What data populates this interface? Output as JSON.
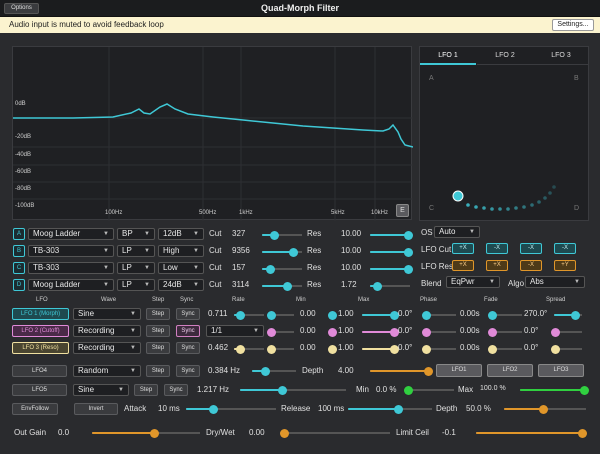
{
  "window": {
    "options_label": "Options",
    "title": "Quad-Morph Filter"
  },
  "notice": {
    "message": "Audio input is muted to avoid feedback loop",
    "settings_label": "Settings..."
  },
  "eq": {
    "db_labels": [
      "0dB",
      "-20dB",
      "-40dB",
      "-60dB",
      "-80dB",
      "-100dB"
    ],
    "freq_labels": [
      "100Hz",
      "500Hz",
      "1kHz",
      "5kHz",
      "10kHz"
    ],
    "e_button": "E",
    "curve_color": "#3fc8d6"
  },
  "lfo_panel": {
    "tabs": [
      "LFO 1",
      "LFO 2",
      "LFO 3"
    ],
    "corners": [
      "A",
      "B",
      "C",
      "D"
    ]
  },
  "filters": [
    {
      "letter": "A",
      "model": "Moog Ladder",
      "type": "BP",
      "slope": "12dB",
      "cut_label": "Cut",
      "cut": "327",
      "cut_pos": 0.3,
      "res_label": "Res",
      "res": "10.00",
      "res_pos": 0.95
    },
    {
      "letter": "B",
      "model": "TB-303",
      "type": "LP",
      "slope": "High",
      "cut_label": "Cut",
      "cut": "9356",
      "cut_pos": 0.78,
      "res_label": "Res",
      "res": "10.00",
      "res_pos": 0.95
    },
    {
      "letter": "C",
      "model": "TB-303",
      "type": "LP",
      "slope": "Low",
      "cut_label": "Cut",
      "cut": "157",
      "cut_pos": 0.2,
      "res_label": "Res",
      "res": "10.00",
      "res_pos": 0.95
    },
    {
      "letter": "D",
      "model": "Moog Ladder",
      "type": "LP",
      "slope": "24dB",
      "cut_label": "Cut",
      "cut": "3114",
      "cut_pos": 0.62,
      "res_label": "Res",
      "res": "1.72",
      "res_pos": 0.18
    }
  ],
  "routing": {
    "os_label": "OS",
    "os_value": "Auto",
    "lfo_cut_label": "LFO Cut",
    "lfo_cut_buttons": [
      "+X",
      "-X",
      "-X",
      "-X"
    ],
    "lfo_res_label": "LFO Res",
    "lfo_res_buttons": [
      "+X",
      "+X",
      "-X",
      "+Y"
    ],
    "blend_label": "Blend",
    "blend_value": "EqPwr",
    "algo_label": "Algo",
    "algo_value": "Abs"
  },
  "lfo_header": [
    "LFO",
    "Wave",
    "Step",
    "Sync",
    "Rate",
    "Min",
    "Max",
    "Phase",
    "Fade",
    "Spread"
  ],
  "lfos": [
    {
      "name": "LFO 1 (Morph)",
      "wave": "Sine",
      "step": "Step",
      "sync": "Sync",
      "rate": "0.711",
      "min": "0.00",
      "max": "1.00",
      "phase": "0.0°",
      "fade": "0.00s",
      "spread": "270.0°",
      "color": "#3fc8d6"
    },
    {
      "name": "LFO 2 (Cutoff)",
      "wave": "Recording",
      "step": "Step",
      "sync": "Sync",
      "rate": "1/1",
      "min": "0.00",
      "max": "1.00",
      "phase": "0.0°",
      "fade": "0.00s",
      "spread": "0.0°",
      "color": "#e08ad8"
    },
    {
      "name": "LFO 3 (Reso)",
      "wave": "Recording",
      "step": "Step",
      "sync": "Sync",
      "rate": "0.462",
      "min": "0.00",
      "max": "1.00",
      "phase": "0.0°",
      "fade": "0.00s",
      "spread": "0.0°",
      "color": "#f0e0a0"
    }
  ],
  "lfo4": {
    "name": "LFO4",
    "wave": "Random",
    "step": "Step",
    "sync": "Sync",
    "rate": "0.384 Hz",
    "depth_label": "Depth",
    "depth": "4.00",
    "targets": [
      "LFO1",
      "LFO2",
      "LFO3"
    ]
  },
  "lfo5": {
    "name": "LFO5",
    "wave": "Sine",
    "step": "Step",
    "sync": "Sync",
    "rate": "1.217 Hz",
    "min_label": "Min",
    "min": "0.0 %",
    "max_label": "Max",
    "max": "100.0 %"
  },
  "env": {
    "envfollow": "EnvFollow",
    "invert": "Invert",
    "attack_label": "Attack",
    "attack": "10 ms",
    "release_label": "Release",
    "release": "100 ms",
    "depth_label": "Depth",
    "depth": "50.0 %"
  },
  "output": {
    "gain_label": "Out Gain",
    "gain": "0.0",
    "drywet_label": "Dry/Wet",
    "drywet": "0.00",
    "limit_label": "Limit Ceil",
    "limit": "-0.1"
  }
}
